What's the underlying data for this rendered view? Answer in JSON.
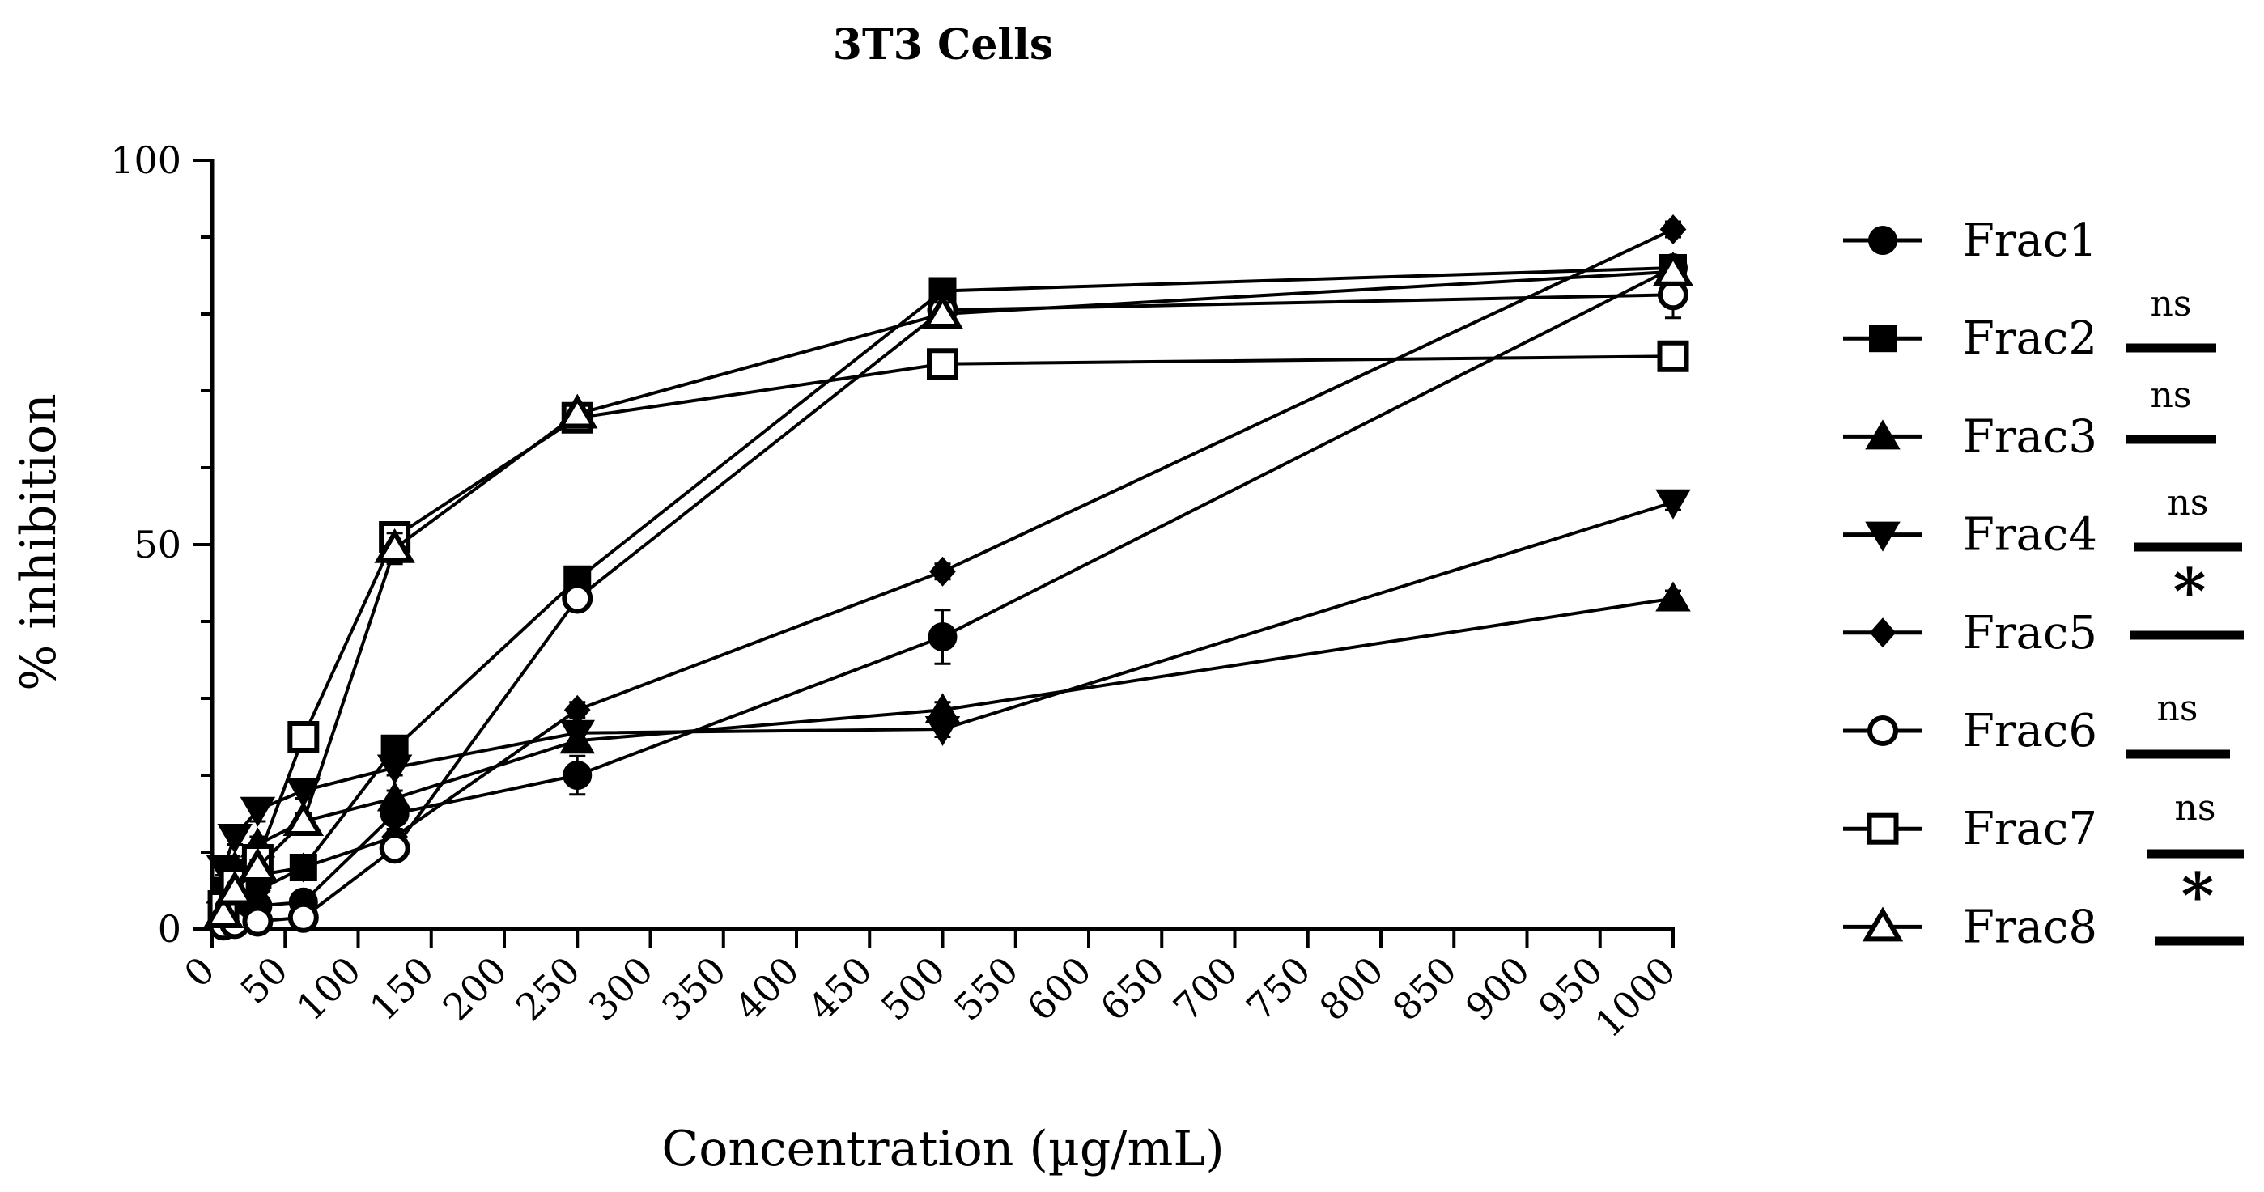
{
  "chart_data": {
    "type": "line",
    "title": "3T3 Cells",
    "xlabel": "Concentration (µg/mL)",
    "ylabel": "% inhibition",
    "xlim": [
      0,
      1000
    ],
    "ylim": [
      0,
      100
    ],
    "x_ticks": [
      0,
      50,
      100,
      150,
      200,
      250,
      300,
      350,
      400,
      450,
      500,
      550,
      600,
      650,
      700,
      750,
      800,
      850,
      900,
      950,
      1000
    ],
    "x_tick_labels": [
      "0",
      "50",
      "100",
      "150",
      "200",
      "250",
      "300",
      "350",
      "400",
      "450",
      "500",
      "550",
      "600",
      "650",
      "700",
      "750",
      "800",
      "850",
      "900",
      "950",
      "1000"
    ],
    "y_ticks": [
      0,
      50,
      100
    ],
    "y_tick_labels": [
      "0",
      "50",
      "100"
    ],
    "grid": false,
    "legend_position": "right",
    "x": [
      7.8,
      15.6,
      31.25,
      62.5,
      125,
      250,
      500,
      1000
    ],
    "series": [
      {
        "name": "Frac1",
        "marker": "circle-filled",
        "values": [
          1,
          2,
          3,
          3.5,
          15,
          20,
          38,
          86
        ],
        "errors": [
          0.5,
          0.5,
          0.5,
          0.5,
          1,
          2.5,
          3.5,
          1
        ]
      },
      {
        "name": "Frac2",
        "marker": "square-filled",
        "values": [
          5,
          6,
          7,
          8,
          23.5,
          45.5,
          83,
          86
        ],
        "errors": [
          1,
          1,
          1,
          1,
          1.5,
          1.5,
          1,
          1
        ]
      },
      {
        "name": "Frac3",
        "marker": "triangle-up-filled",
        "values": [
          5,
          8,
          11,
          14,
          17,
          24.5,
          28.5,
          43
        ],
        "errors": [
          1,
          1,
          1,
          1,
          1,
          1,
          1,
          1
        ]
      },
      {
        "name": "Frac4",
        "marker": "triangle-down-filled",
        "values": [
          8,
          12,
          15.5,
          18,
          21,
          25.5,
          26,
          55.5
        ],
        "errors": [
          1,
          1,
          1.5,
          1,
          1,
          1,
          1,
          1
        ]
      },
      {
        "name": "Frac5",
        "marker": "diamond-filled",
        "values": [
          2,
          3,
          5,
          8,
          12,
          28.5,
          46.5,
          91
        ],
        "errors": [
          0.5,
          0.5,
          0.5,
          0.5,
          1,
          1,
          1,
          1
        ]
      },
      {
        "name": "Frac6",
        "marker": "circle-open",
        "values": [
          0.5,
          0.7,
          1,
          1.5,
          10.5,
          43,
          80.5,
          82.5
        ],
        "errors": [
          0.5,
          0.5,
          0.5,
          0.5,
          1,
          1,
          1,
          3
        ]
      },
      {
        "name": "Frac7",
        "marker": "square-open",
        "values": [
          3,
          6,
          9,
          25,
          51,
          66.5,
          73.5,
          74.5
        ],
        "errors": [
          1,
          1,
          1,
          1,
          1,
          1,
          1,
          1
        ]
      },
      {
        "name": "Frac8",
        "marker": "triangle-up-open",
        "values": [
          2,
          5,
          8,
          14,
          49.5,
          67,
          80,
          85.5
        ],
        "errors": [
          1,
          1,
          1,
          1,
          2,
          1,
          1.5,
          1
        ]
      }
    ],
    "significance": [
      {
        "label": "ns"
      },
      {
        "label": "ns"
      },
      {
        "label": "ns"
      },
      {
        "label": "*"
      },
      {
        "label": "ns"
      },
      {
        "label": "ns"
      },
      {
        "label": "*"
      }
    ]
  }
}
